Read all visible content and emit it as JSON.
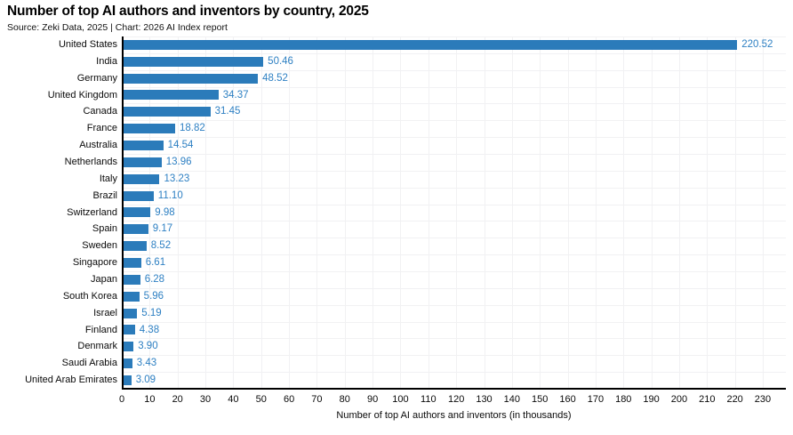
{
  "header": {
    "title": "Number of top AI authors and inventors by country, 2025",
    "subtitle": "Source: Zeki Data, 2025 | Chart: 2026 AI Index report"
  },
  "chart_data": {
    "type": "bar",
    "orientation": "horizontal",
    "title": "Number of top AI authors and inventors by country, 2025",
    "subtitle": "Source: Zeki Data, 2025 | Chart: 2026 AI Index report",
    "categories": [
      "United States",
      "India",
      "Germany",
      "United Kingdom",
      "Canada",
      "France",
      "Australia",
      "Netherlands",
      "Italy",
      "Brazil",
      "Switzerland",
      "Spain",
      "Sweden",
      "Singapore",
      "Japan",
      "South Korea",
      "Israel",
      "Finland",
      "Denmark",
      "Saudi Arabia",
      "United Arab Emirates"
    ],
    "values": [
      220.52,
      50.46,
      48.52,
      34.37,
      31.45,
      18.82,
      14.54,
      13.96,
      13.23,
      11.1,
      9.98,
      9.17,
      8.52,
      6.61,
      6.28,
      5.96,
      5.19,
      4.38,
      3.9,
      3.43,
      3.09
    ],
    "value_labels": [
      "220.52",
      "50.46",
      "48.52",
      "34.37",
      "31.45",
      "18.82",
      "14.54",
      "13.96",
      "13.23",
      "11.10",
      "9.98",
      "9.17",
      "8.52",
      "6.61",
      "6.28",
      "5.96",
      "5.19",
      "4.38",
      "3.90",
      "3.43",
      "3.09"
    ],
    "xlabel": "Number of top AI authors and inventors (in thousands)",
    "ylabel": "",
    "xticks": [
      0,
      10,
      20,
      30,
      40,
      50,
      60,
      70,
      80,
      90,
      100,
      110,
      120,
      130,
      140,
      150,
      160,
      170,
      180,
      190,
      200,
      210,
      220,
      230
    ],
    "xlim": [
      0,
      238.3
    ],
    "grid": true,
    "legend": "none",
    "bar_color": "#2b7bba",
    "value_label_color": "#2e80c3",
    "grid_color": "#f1f1f3",
    "axis_color": "#000000"
  }
}
